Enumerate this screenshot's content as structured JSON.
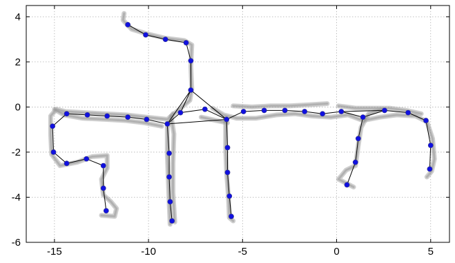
{
  "chart_data": {
    "type": "scatter",
    "title": "",
    "xlabel": "",
    "ylabel": "",
    "xlim": [
      -16.5,
      6
    ],
    "ylim": [
      -6,
      4.5
    ],
    "xticks": [
      -15,
      -10,
      -5,
      0,
      5
    ],
    "yticks": [
      -6,
      -4,
      -2,
      0,
      2,
      4
    ],
    "grid": true,
    "colors": {
      "node": "#1010e0",
      "edge": "#000000",
      "trajectory": "#a8a8a8"
    },
    "series": [
      {
        "kind": "nodes",
        "points": [
          [
            -11.1,
            3.65
          ],
          [
            -10.15,
            3.2
          ],
          [
            -9.1,
            3.0
          ],
          [
            -8.0,
            2.85
          ],
          [
            -7.75,
            2.05
          ],
          [
            -7.75,
            0.75
          ],
          [
            -8.3,
            -0.25
          ],
          [
            -7.0,
            -0.1
          ],
          [
            -5.85,
            -0.55
          ],
          [
            -4.95,
            -0.2
          ],
          [
            -3.85,
            -0.15
          ],
          [
            -2.75,
            -0.15
          ],
          [
            -1.7,
            -0.2
          ],
          [
            -0.75,
            -0.3
          ],
          [
            0.25,
            -0.2
          ],
          [
            1.4,
            -0.45
          ],
          [
            2.55,
            -0.15
          ],
          [
            3.8,
            -0.25
          ],
          [
            4.75,
            -0.6
          ],
          [
            5.0,
            -1.7
          ],
          [
            4.95,
            -2.75
          ],
          [
            -9.0,
            -0.75
          ],
          [
            -10.1,
            -0.55
          ],
          [
            -11.1,
            -0.45
          ],
          [
            -12.2,
            -0.4
          ],
          [
            -13.25,
            -0.35
          ],
          [
            -14.35,
            -0.3
          ],
          [
            -15.1,
            -0.85
          ],
          [
            -15.05,
            -2.0
          ],
          [
            -14.35,
            -2.5
          ],
          [
            -13.3,
            -2.3
          ],
          [
            -12.4,
            -2.6
          ],
          [
            -12.4,
            -3.6
          ],
          [
            -12.25,
            -4.6
          ],
          [
            -8.9,
            -2.05
          ],
          [
            -8.9,
            -3.1
          ],
          [
            -8.85,
            -4.2
          ],
          [
            -8.75,
            -5.05
          ],
          [
            -5.8,
            -1.8
          ],
          [
            -5.8,
            -2.9
          ],
          [
            -5.7,
            -3.95
          ],
          [
            -5.6,
            -4.85
          ],
          [
            1.15,
            -1.4
          ],
          [
            1.0,
            -2.45
          ],
          [
            0.55,
            -3.45
          ]
        ]
      },
      {
        "kind": "edges",
        "segments": [
          [
            [
              -11.1,
              3.65
            ],
            [
              -10.15,
              3.2
            ]
          ],
          [
            [
              -10.15,
              3.2
            ],
            [
              -9.1,
              3.0
            ]
          ],
          [
            [
              -9.1,
              3.0
            ],
            [
              -8.0,
              2.85
            ]
          ],
          [
            [
              -8.0,
              2.85
            ],
            [
              -7.75,
              2.05
            ]
          ],
          [
            [
              -7.75,
              2.05
            ],
            [
              -7.75,
              0.75
            ]
          ],
          [
            [
              -7.75,
              0.75
            ],
            [
              -9.0,
              -0.75
            ]
          ],
          [
            [
              -7.75,
              0.75
            ],
            [
              -8.3,
              -0.25
            ]
          ],
          [
            [
              -7.75,
              0.75
            ],
            [
              -5.85,
              -0.55
            ]
          ],
          [
            [
              -8.3,
              -0.25
            ],
            [
              -9.0,
              -0.75
            ]
          ],
          [
            [
              -8.3,
              -0.25
            ],
            [
              -7.0,
              -0.1
            ]
          ],
          [
            [
              -7.0,
              -0.1
            ],
            [
              -5.85,
              -0.55
            ]
          ],
          [
            [
              -9.0,
              -0.75
            ],
            [
              -5.85,
              -0.55
            ]
          ],
          [
            [
              -5.85,
              -0.55
            ],
            [
              -4.95,
              -0.2
            ]
          ],
          [
            [
              -4.95,
              -0.2
            ],
            [
              -3.85,
              -0.15
            ]
          ],
          [
            [
              -3.85,
              -0.15
            ],
            [
              -2.75,
              -0.15
            ]
          ],
          [
            [
              -2.75,
              -0.15
            ],
            [
              -1.7,
              -0.2
            ]
          ],
          [
            [
              -1.7,
              -0.2
            ],
            [
              -0.75,
              -0.3
            ]
          ],
          [
            [
              -0.75,
              -0.3
            ],
            [
              0.25,
              -0.2
            ]
          ],
          [
            [
              0.25,
              -0.2
            ],
            [
              1.4,
              -0.45
            ]
          ],
          [
            [
              1.4,
              -0.45
            ],
            [
              2.55,
              -0.15
            ]
          ],
          [
            [
              0.25,
              -0.2
            ],
            [
              2.55,
              -0.15
            ]
          ],
          [
            [
              2.55,
              -0.15
            ],
            [
              3.8,
              -0.25
            ]
          ],
          [
            [
              3.8,
              -0.25
            ],
            [
              4.75,
              -0.6
            ]
          ],
          [
            [
              4.75,
              -0.6
            ],
            [
              5.0,
              -1.7
            ]
          ],
          [
            [
              5.0,
              -1.7
            ],
            [
              4.95,
              -2.75
            ]
          ],
          [
            [
              -9.0,
              -0.75
            ],
            [
              -10.1,
              -0.55
            ]
          ],
          [
            [
              -10.1,
              -0.55
            ],
            [
              -11.1,
              -0.45
            ]
          ],
          [
            [
              -11.1,
              -0.45
            ],
            [
              -12.2,
              -0.4
            ]
          ],
          [
            [
              -12.2,
              -0.4
            ],
            [
              -13.25,
              -0.35
            ]
          ],
          [
            [
              -13.25,
              -0.35
            ],
            [
              -14.35,
              -0.3
            ]
          ],
          [
            [
              -14.35,
              -0.3
            ],
            [
              -15.1,
              -0.85
            ]
          ],
          [
            [
              -15.1,
              -0.85
            ],
            [
              -15.05,
              -2.0
            ]
          ],
          [
            [
              -15.05,
              -2.0
            ],
            [
              -14.35,
              -2.5
            ]
          ],
          [
            [
              -14.35,
              -2.5
            ],
            [
              -13.3,
              -2.3
            ]
          ],
          [
            [
              -13.3,
              -2.3
            ],
            [
              -12.4,
              -2.6
            ]
          ],
          [
            [
              -12.4,
              -2.6
            ],
            [
              -12.4,
              -3.6
            ]
          ],
          [
            [
              -12.4,
              -3.6
            ],
            [
              -12.25,
              -4.6
            ]
          ],
          [
            [
              -9.0,
              -0.75
            ],
            [
              -8.9,
              -2.05
            ]
          ],
          [
            [
              -8.9,
              -2.05
            ],
            [
              -8.9,
              -3.1
            ]
          ],
          [
            [
              -8.9,
              -3.1
            ],
            [
              -8.85,
              -4.2
            ]
          ],
          [
            [
              -8.85,
              -4.2
            ],
            [
              -8.75,
              -5.05
            ]
          ],
          [
            [
              -5.85,
              -0.55
            ],
            [
              -5.8,
              -1.8
            ]
          ],
          [
            [
              -5.8,
              -1.8
            ],
            [
              -5.8,
              -2.9
            ]
          ],
          [
            [
              -5.8,
              -2.9
            ],
            [
              -5.7,
              -3.95
            ]
          ],
          [
            [
              -5.7,
              -3.95
            ],
            [
              -5.6,
              -4.85
            ]
          ],
          [
            [
              1.4,
              -0.45
            ],
            [
              1.15,
              -1.4
            ]
          ],
          [
            [
              1.15,
              -1.4
            ],
            [
              1.0,
              -2.45
            ]
          ],
          [
            [
              1.0,
              -2.45
            ],
            [
              0.55,
              -3.45
            ]
          ]
        ]
      },
      {
        "kind": "trajectory",
        "paths": [
          [
            [
              -11.3,
              4.15
            ],
            [
              -11.35,
              3.85
            ],
            [
              -10.9,
              3.45
            ],
            [
              -10.1,
              3.25
            ],
            [
              -9.1,
              3.05
            ],
            [
              -8.1,
              2.95
            ],
            [
              -7.7,
              2.75
            ],
            [
              -7.75,
              1.8
            ],
            [
              -7.7,
              0.8
            ],
            [
              -7.8,
              0.3
            ],
            [
              -8.5,
              -0.2
            ],
            [
              -9.0,
              -0.55
            ],
            [
              -10.1,
              -0.45
            ],
            [
              -11.2,
              -0.35
            ],
            [
              -12.3,
              -0.3
            ],
            [
              -13.4,
              -0.25
            ],
            [
              -14.4,
              -0.2
            ],
            [
              -14.9,
              -0.1
            ],
            [
              -15.2,
              -0.4
            ],
            [
              -15.2,
              -1.2
            ],
            [
              -15.15,
              -2.1
            ],
            [
              -14.7,
              -2.6
            ],
            [
              -13.8,
              -2.45
            ],
            [
              -13.0,
              -2.2
            ],
            [
              -12.2,
              -2.15
            ],
            [
              -12.2,
              -2.7
            ],
            [
              -12.5,
              -3.2
            ],
            [
              -12.4,
              -3.9
            ],
            [
              -12.0,
              -4.2
            ],
            [
              -11.7,
              -4.5
            ],
            [
              -11.8,
              -4.85
            ],
            [
              -12.5,
              -4.8
            ]
          ],
          [
            [
              -6.6,
              -0.05
            ],
            [
              -6.0,
              -0.35
            ],
            [
              -5.3,
              -0.5
            ],
            [
              -4.3,
              -0.5
            ],
            [
              -3.2,
              -0.35
            ],
            [
              -2.2,
              -0.3
            ],
            [
              -1.3,
              -0.4
            ],
            [
              -0.3,
              -0.45
            ],
            [
              0.6,
              -0.35
            ],
            [
              1.4,
              -0.6
            ],
            [
              2.3,
              -0.45
            ],
            [
              3.2,
              -0.35
            ],
            [
              4.2,
              -0.4
            ],
            [
              4.8,
              -0.65
            ],
            [
              5.1,
              -1.4
            ],
            [
              5.2,
              -2.3
            ],
            [
              5.05,
              -2.85
            ],
            [
              4.8,
              -3.1
            ]
          ],
          [
            [
              -5.5,
              0.05
            ],
            [
              -4.5,
              0.0
            ],
            [
              -3.5,
              0.05
            ],
            [
              -2.5,
              0.05
            ],
            [
              -1.5,
              0.1
            ],
            [
              -0.5,
              0.15
            ]
          ],
          [
            [
              0.1,
              0.05
            ],
            [
              1.0,
              -0.05
            ],
            [
              1.9,
              -0.05
            ],
            [
              2.8,
              -0.05
            ],
            [
              3.7,
              -0.15
            ],
            [
              4.5,
              -0.3
            ]
          ],
          [
            [
              -8.7,
              -0.3
            ],
            [
              -9.0,
              -0.9
            ],
            [
              -9.0,
              -2.1
            ],
            [
              -8.95,
              -3.2
            ],
            [
              -8.9,
              -4.3
            ],
            [
              -8.85,
              -5.2
            ]
          ],
          [
            [
              -8.8,
              -0.4
            ],
            [
              -8.65,
              -1.2
            ],
            [
              -8.7,
              -2.5
            ],
            [
              -8.7,
              -3.8
            ],
            [
              -8.6,
              -5.1
            ]
          ],
          [
            [
              -5.9,
              -0.5
            ],
            [
              -5.9,
              -1.8
            ],
            [
              -5.85,
              -2.9
            ],
            [
              -5.75,
              -4.0
            ],
            [
              -5.7,
              -4.9
            ],
            [
              -5.5,
              -5.05
            ]
          ],
          [
            [
              2.4,
              -0.1
            ],
            [
              1.7,
              -0.3
            ],
            [
              1.3,
              -0.9
            ],
            [
              1.15,
              -1.7
            ],
            [
              1.0,
              -2.6
            ],
            [
              0.5,
              -2.8
            ],
            [
              0.1,
              -3.2
            ],
            [
              0.9,
              -3.55
            ]
          ],
          [
            [
              -15.0,
              -0.1
            ],
            [
              -14.5,
              -0.35
            ],
            [
              -13.5,
              -0.5
            ],
            [
              -12.3,
              -0.55
            ],
            [
              -11.2,
              -0.6
            ],
            [
              -10.2,
              -0.7
            ],
            [
              -9.3,
              -0.85
            ]
          ],
          [
            [
              -7.2,
              -0.45
            ],
            [
              -6.4,
              -0.6
            ],
            [
              -5.8,
              -0.7
            ]
          ]
        ]
      }
    ]
  }
}
